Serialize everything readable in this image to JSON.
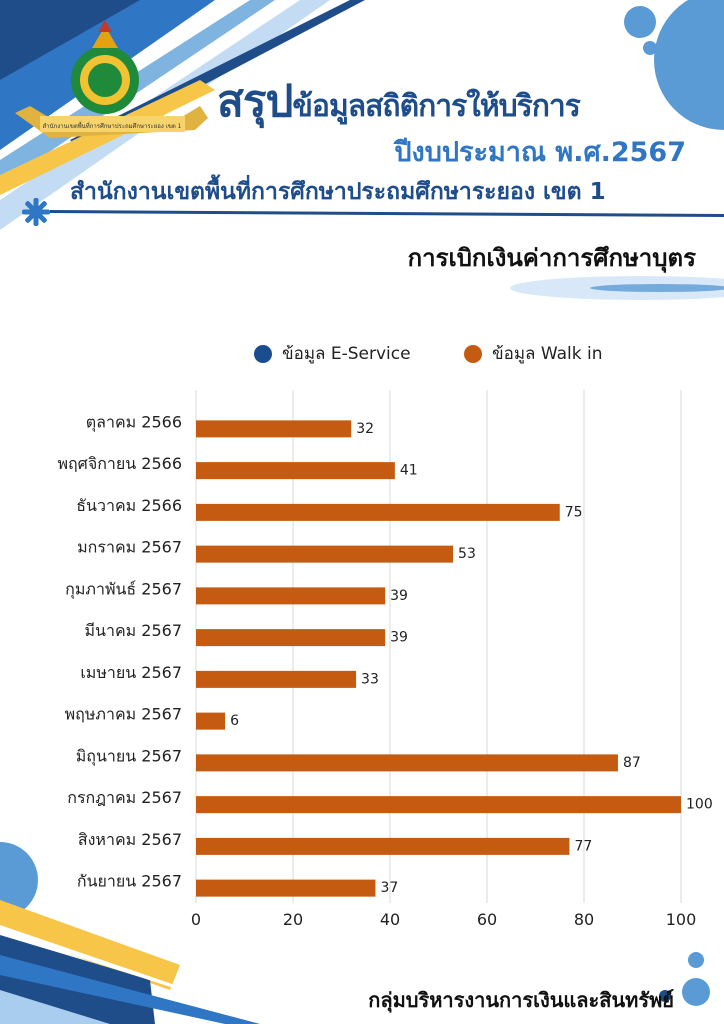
{
  "header": {
    "title_big": "สรุป",
    "title_rest": "ข้อมูลสถิติการให้บริการ",
    "subtitle": "ปีงบประมาณ พ.ศ.2567",
    "office": "สำนักงานเขตพื้นที่การศึกษาประถมศึกษาระยอง เขต 1",
    "logo_ribbon_text": "สำนักงานเขตพื้นที่การศึกษาประถมศึกษาระยอง เขต 1"
  },
  "section_title": "การเบิกเงินค่าการศึกษาบุตร",
  "footer": "กลุ่มบริหารงานการเงินและสินทรัพย์",
  "colors": {
    "eservice": "#1a4d8f",
    "walkin": "#c55a11",
    "title_dark_blue": "#1f4d8a",
    "title_light_blue": "#2f76c5",
    "accent_yellow": "#f7c548"
  },
  "chart_data": {
    "type": "bar",
    "orientation": "horizontal",
    "categories": [
      "ตุลาคม 2566",
      "พฤศจิกายน 2566",
      "ธันวาคม 2566",
      "มกราคม 2567",
      "กุมภาพันธ์ 2567",
      "มีนาคม 2567",
      "เมษายน 2567",
      "พฤษภาคม 2567",
      "มิถุนายน 2567",
      "กรกฎาคม 2567",
      "สิงหาคม 2567",
      "กันยายน 2567"
    ],
    "series": [
      {
        "name": "ข้อมูล E-Service",
        "values": [
          0,
          0,
          0,
          0,
          0,
          0,
          0,
          0,
          0,
          0,
          0,
          0
        ],
        "color": "#1a4d8f"
      },
      {
        "name": "ข้อมูล Walk in",
        "values": [
          32,
          41,
          75,
          53,
          39,
          39,
          33,
          6,
          87,
          100,
          77,
          37
        ],
        "color": "#c55a11"
      }
    ],
    "xlim": [
      0,
      100
    ],
    "xticks": [
      0,
      20,
      40,
      60,
      80,
      100
    ],
    "grid": true,
    "legend": "top",
    "data_labels": true
  }
}
